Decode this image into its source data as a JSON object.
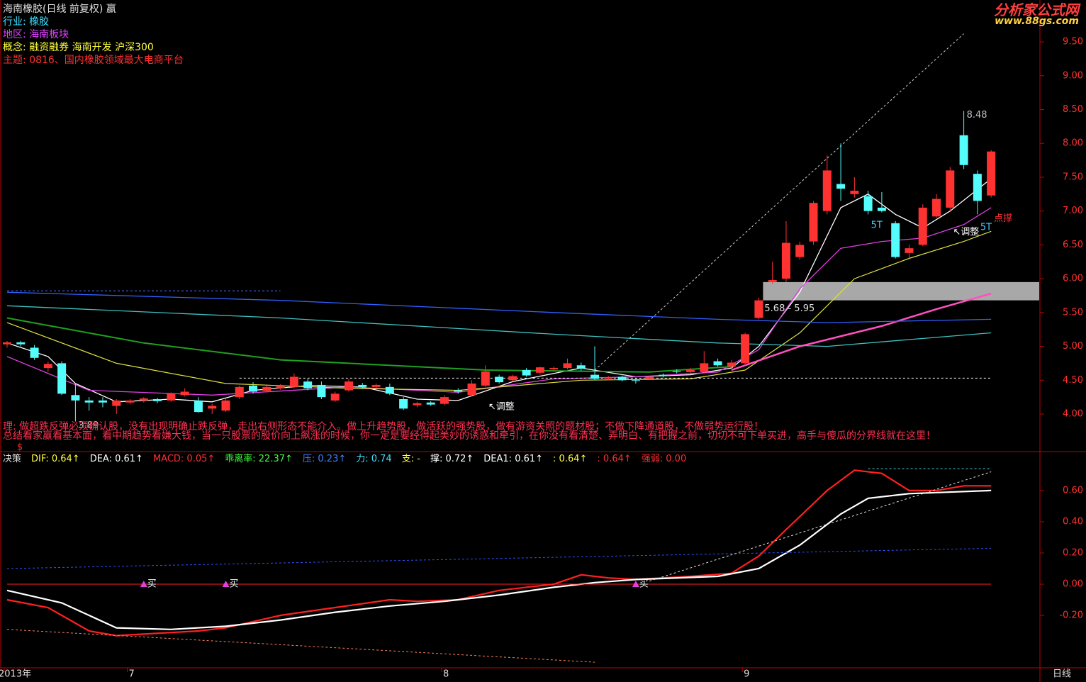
{
  "header": {
    "title": "海南橡胶(日线 前复权) 嬴",
    "lines": [
      {
        "text": "行业: 橡胶",
        "color": "#40e0ff"
      },
      {
        "text": "地区: 海南板块",
        "color": "#e040ff"
      },
      {
        "text": "概念: 融资融券 海南开发 沪深300",
        "color": "#ffff40"
      },
      {
        "text": "主题: 0816、国内橡胶领域最大电商平台",
        "color": "#ff3030"
      }
    ]
  },
  "logo": {
    "name": "分析家公式网",
    "url": "www.88gs.com"
  },
  "notes": [
    "理: 做超跌反弹必须确认股，没有出现明确止跌反弹，走出右侧形态不能介入。做上升趋势股，做活跃的强势股，做有游资关照的题材股；不做下降通道股，不做弱势运行股！",
    "总结看家赢看基本面，看中期趋势看嫌大钱，当一只股票的股价向上飙涨的时候，你一定是要经得起美妙的诱惑和牵引，在你没有看清楚、弄明白、有把握之前，切切不可下单买进，高手与傻瓜的分界线就在这里！"
  ],
  "marker": "$",
  "period": "日线",
  "chart_data": [
    {
      "type": "candlestick",
      "categories": [
        "2013年",
        null,
        null,
        null,
        null,
        null,
        null,
        null,
        null,
        "7",
        null,
        null,
        null,
        null,
        null,
        null,
        null,
        null,
        null,
        null,
        null,
        null,
        null,
        null,
        null,
        null,
        null,
        null,
        null,
        null,
        null,
        null,
        "8",
        null,
        null,
        null,
        null,
        null,
        null,
        null,
        null,
        null,
        null,
        null,
        null,
        null,
        null,
        null,
        null,
        null,
        null,
        null,
        null,
        null,
        "9",
        null,
        null,
        null,
        null,
        null,
        null,
        null,
        null,
        null,
        null,
        null,
        null,
        null,
        null,
        null,
        null,
        null,
        null
      ],
      "open": [
        5.03,
        5.06,
        4.98,
        4.68,
        4.75,
        4.28,
        4.2,
        4.2,
        4.12,
        4.17,
        4.2,
        4.22,
        4.2,
        4.28,
        4.2,
        4.08,
        4.05,
        4.25,
        4.42,
        4.34,
        4.38,
        4.4,
        4.48,
        4.43,
        4.2,
        4.35,
        4.43,
        4.4,
        4.4,
        4.22,
        4.13,
        4.17,
        4.15,
        4.35,
        4.28,
        4.42,
        4.55,
        4.5,
        4.65,
        4.61,
        4.66,
        4.68,
        4.72,
        4.58,
        4.52,
        4.55,
        4.5,
        4.52,
        4.58,
        4.63,
        4.62,
        4.62,
        4.78,
        4.7,
        4.75,
        5.42,
        5.95,
        6.0,
        6.32,
        6.55,
        7.0,
        7.4,
        7.25,
        7.22,
        7.05,
        6.82,
        6.38,
        6.5,
        6.92,
        7.05,
        8.12,
        7.55,
        7.23
      ],
      "high": [
        5.08,
        5.08,
        5.02,
        4.78,
        4.78,
        4.45,
        4.25,
        4.25,
        4.22,
        4.22,
        4.25,
        4.24,
        4.32,
        4.38,
        4.25,
        4.15,
        4.22,
        4.42,
        4.47,
        4.42,
        4.44,
        4.6,
        4.52,
        4.48,
        4.33,
        4.52,
        4.46,
        4.45,
        4.45,
        4.25,
        4.18,
        4.19,
        4.28,
        4.38,
        4.5,
        4.72,
        4.58,
        4.58,
        4.68,
        4.7,
        4.7,
        4.82,
        4.76,
        5.0,
        4.56,
        4.57,
        4.53,
        4.56,
        4.6,
        4.66,
        4.68,
        4.93,
        4.82,
        4.8,
        5.2,
        5.72,
        6.25,
        6.85,
        6.55,
        7.15,
        7.82,
        8.0,
        7.5,
        7.3,
        7.28,
        6.85,
        6.5,
        7.1,
        7.25,
        7.65,
        8.48,
        7.6,
        7.9
      ],
      "low": [
        4.98,
        5.0,
        4.8,
        4.62,
        4.28,
        3.89,
        4.05,
        4.1,
        4.0,
        4.14,
        4.17,
        4.16,
        4.18,
        4.26,
        4.02,
        4.0,
        4.03,
        4.22,
        4.3,
        4.32,
        4.36,
        4.38,
        4.35,
        4.22,
        4.18,
        4.33,
        4.38,
        4.38,
        4.28,
        4.06,
        4.1,
        4.12,
        4.13,
        4.3,
        4.26,
        4.4,
        4.45,
        4.48,
        4.55,
        4.58,
        4.64,
        4.66,
        4.64,
        4.5,
        4.5,
        4.48,
        4.45,
        4.5,
        4.54,
        4.6,
        4.6,
        4.6,
        4.7,
        4.68,
        4.72,
        5.4,
        5.92,
        5.95,
        6.28,
        6.5,
        6.95,
        7.15,
        7.2,
        6.95,
        6.98,
        6.3,
        6.3,
        6.48,
        6.9,
        7.0,
        7.62,
        6.95,
        7.2
      ],
      "close": [
        5.06,
        5.03,
        4.83,
        4.74,
        4.3,
        4.2,
        4.17,
        4.17,
        4.2,
        4.2,
        4.23,
        4.19,
        4.3,
        4.33,
        4.03,
        4.12,
        4.2,
        4.4,
        4.33,
        4.4,
        4.41,
        4.55,
        4.38,
        4.25,
        4.3,
        4.48,
        4.4,
        4.43,
        4.3,
        4.08,
        4.16,
        4.14,
        4.25,
        4.33,
        4.45,
        4.63,
        4.47,
        4.56,
        4.57,
        4.69,
        4.68,
        4.75,
        4.67,
        4.52,
        4.54,
        4.5,
        4.49,
        4.55,
        4.56,
        4.62,
        4.65,
        4.75,
        4.72,
        4.76,
        5.18,
        5.68,
        5.98,
        6.53,
        6.5,
        7.12,
        7.6,
        7.33,
        7.3,
        7.0,
        7.0,
        6.32,
        6.45,
        7.05,
        7.18,
        7.6,
        7.68,
        7.15,
        7.88
      ],
      "up_color": "#ff3232",
      "down_color": "#54fcfc",
      "ylim": [
        3.455,
        9.7
      ],
      "yticks": [
        {
          "value": 4,
          "label": "4.00"
        },
        {
          "value": 4.5,
          "label": "4.50"
        },
        {
          "value": 5,
          "label": "5.00"
        },
        {
          "value": 5.5,
          "label": "5.50"
        },
        {
          "value": 6,
          "label": "6.00"
        },
        {
          "value": 6.5,
          "label": "6.50"
        },
        {
          "value": 7,
          "label": "7.00"
        },
        {
          "value": 7.5,
          "label": "7.50"
        },
        {
          "value": 8,
          "label": "8.00"
        },
        {
          "value": 8.5,
          "label": "8.50"
        },
        {
          "value": 9,
          "label": "9.00"
        },
        {
          "value": 9.5,
          "label": "9.50"
        }
      ],
      "lines": [
        {
          "color": "#ffffff",
          "width": 1.3,
          "x": [
            0,
            3,
            5,
            8,
            12,
            15,
            18,
            22,
            26,
            30,
            33,
            37,
            42,
            46,
            50,
            53,
            55,
            58,
            61,
            63,
            65,
            67,
            69,
            72
          ],
          "values": [
            5.05,
            4.85,
            4.45,
            4.18,
            4.22,
            4.18,
            4.35,
            4.42,
            4.4,
            4.22,
            4.2,
            4.48,
            4.68,
            4.55,
            4.58,
            4.68,
            5.0,
            5.8,
            7.05,
            7.25,
            6.95,
            6.75,
            7.0,
            7.48
          ]
        },
        {
          "color": "#e040e0",
          "width": 1.3,
          "x": [
            0,
            6,
            15,
            25,
            33,
            40,
            46,
            52,
            55,
            58,
            61,
            64,
            67,
            70,
            72
          ],
          "values": [
            4.85,
            4.35,
            4.28,
            4.4,
            4.32,
            4.52,
            4.55,
            4.62,
            4.95,
            5.85,
            6.45,
            6.55,
            6.6,
            6.8,
            7.05
          ]
        },
        {
          "color": "#e0e040",
          "width": 1.2,
          "x": [
            0,
            8,
            16,
            25,
            33,
            42,
            50,
            54,
            58,
            62,
            66,
            70,
            72
          ],
          "values": [
            5.35,
            4.75,
            4.45,
            4.38,
            4.35,
            4.5,
            4.52,
            4.65,
            5.2,
            6.0,
            6.3,
            6.55,
            6.7
          ]
        },
        {
          "color": "#ff50c0",
          "width": 2.5,
          "x": [
            53,
            58,
            64,
            68,
            72
          ],
          "values": [
            4.65,
            5.0,
            5.3,
            5.55,
            5.78
          ]
        },
        {
          "color": "#20a020",
          "width": 2,
          "x": [
            0,
            10,
            20,
            35,
            47,
            53
          ],
          "values": [
            5.42,
            5.05,
            4.8,
            4.65,
            4.62,
            4.7
          ]
        },
        {
          "color": "#3060ff",
          "width": 1.3,
          "x": [
            0,
            20,
            40,
            52,
            60,
            72
          ],
          "values": [
            5.8,
            5.68,
            5.5,
            5.4,
            5.35,
            5.4
          ]
        },
        {
          "color": "#40c0c0",
          "width": 1.3,
          "x": [
            0,
            20,
            40,
            52,
            60,
            66,
            72
          ],
          "values": [
            5.6,
            5.42,
            5.18,
            5.05,
            5.0,
            5.1,
            5.2
          ]
        },
        {
          "color": "#5070ff",
          "width": 1,
          "dash": true,
          "x": [
            0,
            20
          ],
          "values": [
            5.82,
            5.82
          ]
        },
        {
          "color": "#ffffff",
          "width": 1,
          "dash": true,
          "x": [
            17,
            72
          ],
          "values": [
            4.53,
            4.53
          ]
        },
        {
          "color": "#d0d0d0",
          "width": 1,
          "dash": true,
          "x": [
            43,
            70
          ],
          "values": [
            4.65,
            9.62
          ]
        }
      ],
      "band": {
        "from": 5.68,
        "to": 5.95,
        "x": 55,
        "label": "5.68 - 5.95",
        "color": "#a8a8a8"
      },
      "annotations": [
        {
          "x": 5,
          "y": 3.89,
          "text": "3.89",
          "color": "#c0c0c0"
        },
        {
          "x": 70,
          "y": 8.48,
          "text": "8.48",
          "color": "#c0c0c0"
        },
        {
          "x": 35,
          "y": 4.17,
          "text": "↖调整",
          "color": "#ffffff"
        },
        {
          "x": 69,
          "y": 6.75,
          "text": "↖调整",
          "color": "#ffffff"
        },
        {
          "x": 63,
          "y": 6.85,
          "text": "5T",
          "color": "#40d0ff"
        },
        {
          "x": 71,
          "y": 6.82,
          "text": "5T",
          "color": "#40d0ff"
        },
        {
          "x": 72,
          "y": 6.95,
          "text": "点撑",
          "color": "#ff3030"
        }
      ]
    },
    {
      "type": "line",
      "items": [
        {
          "text": "决策",
          "color": "#e0e0e0"
        },
        {
          "text": "DIF: 0.64↑",
          "color": "#ffff40"
        },
        {
          "text": "DEA: 0.61↑",
          "color": "#ffffff"
        },
        {
          "text": "MACD: 0.05↑",
          "color": "#ff3030"
        },
        {
          "text": "乖离率: 22.37↑",
          "color": "#40ff40"
        },
        {
          "text": "压: 0.23↑",
          "color": "#4080ff"
        },
        {
          "text": "力: 0.74",
          "color": "#40e0ff"
        },
        {
          "text": "支: -",
          "color": "#ffff40"
        },
        {
          "text": "撑: 0.72↑",
          "color": "#ffffff"
        },
        {
          "text": "DEA1: 0.61↑",
          "color": "#ffffff"
        },
        {
          "text": ": 0.64↑",
          "color": "#ffff40"
        },
        {
          "text": ": 0.64↑",
          "color": "#ff3030"
        },
        {
          "text": "强弱: 0.00",
          "color": "#ff3030"
        }
      ],
      "ylim": [
        -0.527,
        0.836
      ],
      "yticks": [
        {
          "value": -0.2,
          "label": "-0.20"
        },
        {
          "value": 0,
          "label": "0.00"
        },
        {
          "value": 0.2,
          "label": "0.20"
        },
        {
          "value": 0.4,
          "label": "0.40"
        },
        {
          "value": 0.6,
          "label": "0.60"
        }
      ],
      "lines": [
        {
          "color": "#ff2020",
          "width": 2.2,
          "x": [
            0,
            3,
            6,
            8,
            10,
            14,
            16,
            20,
            24,
            28,
            30,
            33,
            36,
            40,
            42,
            44,
            46,
            50,
            53,
            55,
            57,
            60,
            62,
            64,
            66,
            68,
            70,
            72
          ],
          "values": [
            -0.1,
            -0.15,
            -0.3,
            -0.33,
            -0.32,
            -0.3,
            -0.28,
            -0.2,
            -0.15,
            -0.1,
            -0.11,
            -0.1,
            -0.04,
            0.0,
            0.06,
            0.04,
            0.03,
            0.05,
            0.07,
            0.18,
            0.35,
            0.6,
            0.73,
            0.71,
            0.6,
            0.6,
            0.63,
            0.63
          ]
        },
        {
          "color": "#ffffff",
          "width": 2.2,
          "x": [
            0,
            4,
            8,
            12,
            16,
            20,
            24,
            28,
            32,
            36,
            40,
            43,
            46,
            52,
            55,
            58,
            61,
            63,
            66,
            72
          ],
          "values": [
            -0.04,
            -0.12,
            -0.28,
            -0.29,
            -0.27,
            -0.23,
            -0.18,
            -0.14,
            -0.11,
            -0.07,
            -0.02,
            0.01,
            0.03,
            0.05,
            0.1,
            0.25,
            0.45,
            0.55,
            0.58,
            0.6
          ]
        },
        {
          "color": "#3050ff",
          "width": 1,
          "dash": true,
          "x": [
            0,
            72
          ],
          "values": [
            0.1,
            0.23
          ]
        },
        {
          "color": "#ff8060",
          "width": 1,
          "dash": true,
          "x": [
            0,
            43
          ],
          "values": [
            -0.29,
            -0.5
          ]
        },
        {
          "color": "#e0e0e0",
          "width": 1,
          "dash": true,
          "x": [
            47,
            72
          ],
          "values": [
            0.02,
            0.72
          ]
        },
        {
          "color": "#40d0d0",
          "width": 1,
          "dash": true,
          "x": [
            63,
            72
          ],
          "values": [
            0.74,
            0.74
          ]
        },
        {
          "color": "#ff2020",
          "width": 1,
          "x": [
            0,
            72
          ],
          "values": [
            0,
            0
          ]
        }
      ],
      "signals": [
        {
          "x": 10,
          "y": 0,
          "text": "买"
        },
        {
          "x": 16,
          "y": 0,
          "text": "买"
        },
        {
          "x": 46,
          "y": 0,
          "text": "买"
        }
      ],
      "signal_color": "#e040e0"
    }
  ]
}
